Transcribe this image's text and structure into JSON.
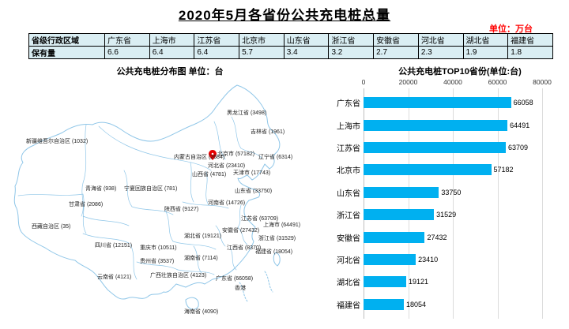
{
  "chart_data": [
    {
      "type": "table",
      "title": "2020年5月各省份公共充电桩总量",
      "unit": "单位：万台",
      "row_header": "省级行政区域",
      "row_label": "保有量",
      "categories": [
        "广东省",
        "上海市",
        "江苏省",
        "北京市",
        "山东省",
        "浙江省",
        "安徽省",
        "河北省",
        "湖北省",
        "福建省"
      ],
      "values": [
        "6.6",
        "6.4",
        "6.4",
        "5.7",
        "3.4",
        "3.2",
        "2.7",
        "2.3",
        "1.9",
        "1.8"
      ],
      "cell_fill": "#DAEEF3"
    },
    {
      "type": "map",
      "title": "公共充电桩分布图  单位：台",
      "line_color": "#8FC6E8",
      "pin_color": "#E60000",
      "labels": [
        {
          "name": "黑龙江省",
          "value": 3498
        },
        {
          "name": "吉林省",
          "value": 1961
        },
        {
          "name": "新疆维吾尔自治区",
          "value": 1032
        },
        {
          "name": "内蒙古自治区",
          "value": 2684
        },
        {
          "name": "北京市",
          "value": 57182
        },
        {
          "name": "辽宁省",
          "value": 6314
        },
        {
          "name": "山西省",
          "value": 4781
        },
        {
          "name": "天津市",
          "value": 17743
        },
        {
          "name": "河北省",
          "value": 23410
        },
        {
          "name": "青海省",
          "value": 938
        },
        {
          "name": "宁夏回族自治区",
          "value": 781
        },
        {
          "name": "山东省",
          "value": 33750
        },
        {
          "name": "甘肃省",
          "value": 2086
        },
        {
          "name": "河南省",
          "value": 14726
        },
        {
          "name": "陕西省",
          "value": 9127
        },
        {
          "name": "江苏省",
          "value": 63709
        },
        {
          "name": "上海市",
          "value": 64491
        },
        {
          "name": "西藏自治区",
          "value": 35
        },
        {
          "name": "安徽省",
          "value": 27432
        },
        {
          "name": "湖北省",
          "value": 19121
        },
        {
          "name": "浙江省",
          "value": 31529
        },
        {
          "name": "四川省",
          "value": 12151
        },
        {
          "name": "重庆市",
          "value": 10511
        },
        {
          "name": "江西省",
          "value": 8370
        },
        {
          "name": "贵州省",
          "value": 3537
        },
        {
          "name": "湖南省",
          "value": 7114
        },
        {
          "name": "福建省",
          "value": 18054
        },
        {
          "name": "云南省",
          "value": 4121
        },
        {
          "name": "广西壮族自治区",
          "value": 4123
        },
        {
          "name": "广东省",
          "value": 66058
        },
        {
          "name": "香港",
          "value": null
        },
        {
          "name": "海南省",
          "value": 4090
        }
      ]
    },
    {
      "type": "bar",
      "orientation": "horizontal",
      "title": "公共充电桩TOP10省份(单位:台)",
      "categories": [
        "广东省",
        "上海市",
        "江苏省",
        "北京市",
        "山东省",
        "浙江省",
        "安徽省",
        "河北省",
        "湖北省",
        "福建省"
      ],
      "values": [
        66058,
        64491,
        63709,
        57182,
        33750,
        31529,
        27432,
        23410,
        19121,
        18054
      ],
      "xlim": [
        0,
        80000
      ],
      "ticks": [
        0,
        20000,
        40000,
        60000,
        80000
      ],
      "grid": true,
      "value_labels": true,
      "bar_color": "#00B0F0"
    }
  ]
}
